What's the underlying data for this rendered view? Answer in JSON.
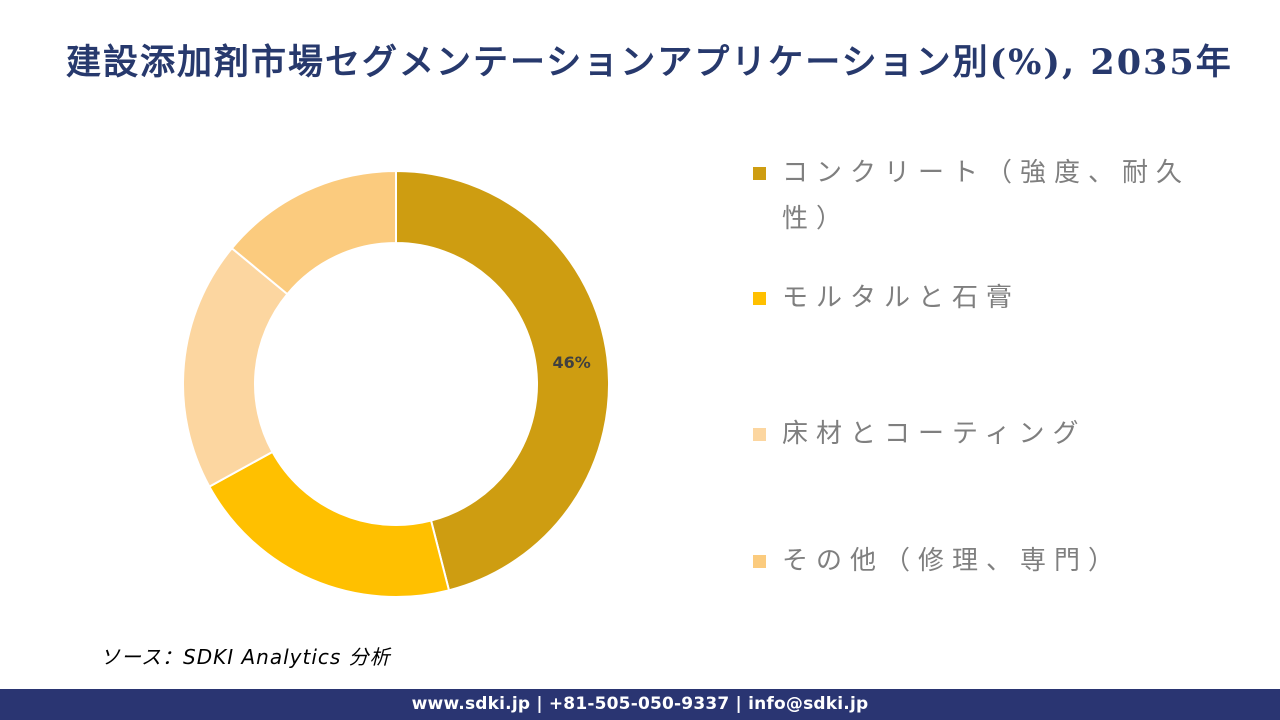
{
  "title": "建設添加剤市場セグメンテーションアプリケーション別(%), 2035年",
  "chart_data": {
    "type": "pie",
    "subtype": "donut",
    "labels": [
      "コンクリート（強度、耐久性）",
      "モルタルと石膏",
      "床材とコーティング",
      "その他（修理、専門）"
    ],
    "values": [
      46,
      21,
      19,
      14
    ],
    "unit": "%",
    "colors": [
      "#CE9D11",
      "#FFC000",
      "#FCD6A0",
      "#FBCB7E"
    ],
    "data_labels": [
      "46%",
      "",
      "",
      ""
    ],
    "data_label_color": "#404040",
    "start_angle_deg": 0,
    "direction": "clockwise",
    "inner_radius_ratio": 0.66,
    "legend_position": "right",
    "legend_text_color": "#7F7F7F",
    "title": "建設添加剤市場セグメンテーションアプリケーション別(%), 2035年"
  },
  "source": "ソース：SDKI Analytics 分析",
  "footer": "www.sdki.jp | +81-505-050-9337 | info@sdki.jp",
  "theme": {
    "title_color": "#27396D",
    "footer_bg": "#2A3572",
    "footer_text_color": "#FFFFFF"
  }
}
